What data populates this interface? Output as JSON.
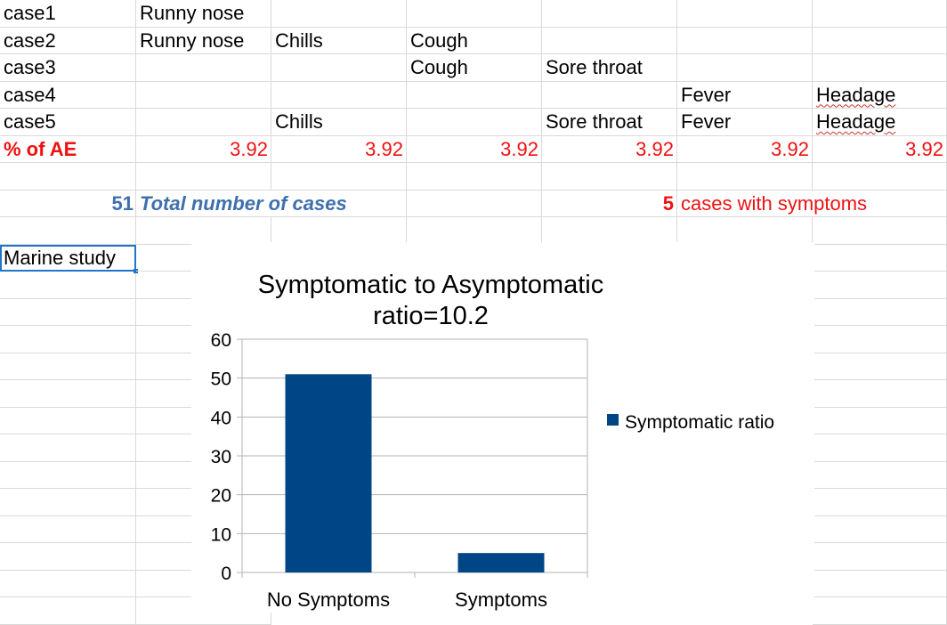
{
  "rows": [
    {
      "cells": [
        "case1",
        "Runny nose",
        "",
        "",
        "",
        "",
        ""
      ]
    },
    {
      "cells": [
        "case2",
        "Runny nose",
        "Chills",
        "Cough",
        "",
        "",
        ""
      ]
    },
    {
      "cells": [
        "case3",
        "",
        "",
        "Cough",
        "Sore throat",
        "",
        ""
      ]
    },
    {
      "cells": [
        "case4",
        "",
        "",
        "",
        "",
        "Fever",
        "Headage"
      ]
    },
    {
      "cells": [
        "case5",
        "",
        "Chills",
        "",
        "Sore throat",
        "Fever",
        "Headage"
      ]
    }
  ],
  "ae_row": {
    "label": "% of AE",
    "values": [
      "3.92",
      "3.92",
      "3.92",
      "3.92",
      "3.92",
      "3.92"
    ]
  },
  "summary": {
    "total_count": "51",
    "total_label": "Total number of cases",
    "symptom_count": "5",
    "symptom_label": "cases with symptoms"
  },
  "selected_cell": "Marine study",
  "colors": {
    "red_text": "#ee1111",
    "blue_text": "#3f6fae",
    "bar_fill": "#004586",
    "selection": "#1f75cc",
    "grid": "#d9d9d9"
  },
  "chart_data": {
    "type": "bar",
    "title": "Symptomatic to Asymptomatic ratio=10.2",
    "title_lines": [
      "Symptomatic to Asymptomatic",
      "ratio=10.2"
    ],
    "categories": [
      "No Symptoms",
      "Symptoms"
    ],
    "series": [
      {
        "name": "Symptomatic ratio",
        "values": [
          51,
          5
        ]
      }
    ],
    "ylim": [
      0,
      60
    ],
    "yticks": [
      "0",
      "10",
      "20",
      "30",
      "40",
      "50",
      "60"
    ],
    "grid": true,
    "legend": "right"
  }
}
